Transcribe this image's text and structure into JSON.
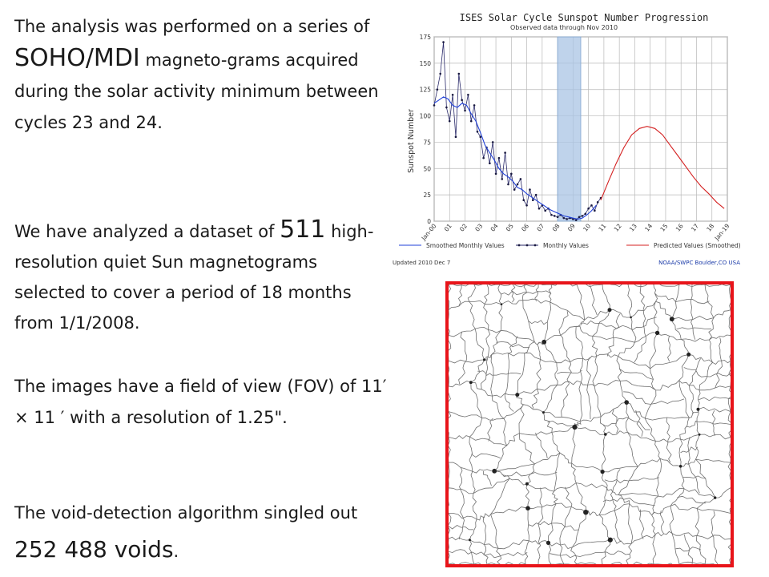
{
  "text": {
    "p1": {
      "a": "The analysis was performed on a series of ",
      "b": "SOHO/MDI",
      "c": " magneto-grams acquired during the solar activity minimum between cycles 23 and 24."
    },
    "p2": {
      "a": "We have analyzed a dataset of ",
      "b": "511",
      "c": " high-resolution quiet Sun magnetograms selected to cover a period of 18 months from 1/1/2008."
    },
    "p3": "The images have a field of view (FOV) of 11′ × 11 ′ with a resolution of 1.25\".",
    "p4": {
      "a": "The void-detection algorithm singled out ",
      "b": "252 488 voids",
      "c": "."
    }
  },
  "chart_data": {
    "type": "line",
    "title": "ISES Solar Cycle Sunspot Number Progression",
    "subtitle": "Observed data through Nov 2010",
    "ylabel": "Sunspot Number",
    "ylim": [
      0,
      175
    ],
    "yticks": [
      0,
      25,
      50,
      75,
      100,
      125,
      150,
      175
    ],
    "xticks": [
      "Jan-00",
      "01",
      "02",
      "03",
      "04",
      "05",
      "06",
      "07",
      "08",
      "09",
      "10",
      "11",
      "12",
      "13",
      "14",
      "15",
      "16",
      "17",
      "18",
      "Jan-19"
    ],
    "xlim": [
      2000,
      2019
    ],
    "highlight": [
      2008,
      2009.5
    ],
    "legend": [
      "Smoothed Monthly Values",
      "Monthly Values",
      "Predicted Values (Smoothed)"
    ],
    "footer_left": "Updated 2010 Dec  7",
    "footer_right": "NOAA/SWPC Boulder,CO USA",
    "series": [
      {
        "name": "Monthly Values",
        "x": [
          2000.0,
          2000.2,
          2000.4,
          2000.6,
          2000.8,
          2001.0,
          2001.2,
          2001.4,
          2001.6,
          2001.8,
          2002.0,
          2002.2,
          2002.4,
          2002.6,
          2002.8,
          2003.0,
          2003.2,
          2003.4,
          2003.6,
          2003.8,
          2004.0,
          2004.2,
          2004.4,
          2004.6,
          2004.8,
          2005.0,
          2005.2,
          2005.4,
          2005.6,
          2005.8,
          2006.0,
          2006.2,
          2006.4,
          2006.6,
          2006.8,
          2007.0,
          2007.2,
          2007.4,
          2007.6,
          2007.8,
          2008.0,
          2008.2,
          2008.4,
          2008.6,
          2008.8,
          2009.0,
          2009.2,
          2009.4,
          2009.6,
          2009.8,
          2010.0,
          2010.2,
          2010.4,
          2010.6,
          2010.8
        ],
        "values": [
          110,
          125,
          140,
          170,
          108,
          95,
          120,
          80,
          140,
          115,
          105,
          120,
          95,
          110,
          85,
          80,
          60,
          70,
          55,
          75,
          45,
          60,
          40,
          65,
          35,
          45,
          30,
          35,
          40,
          20,
          15,
          30,
          20,
          25,
          12,
          15,
          10,
          12,
          6,
          5,
          4,
          6,
          3,
          2,
          3,
          2,
          1,
          4,
          5,
          7,
          12,
          15,
          10,
          18,
          22
        ]
      },
      {
        "name": "Smoothed Monthly Values",
        "x": [
          2000.0,
          2000.3,
          2000.6,
          2000.9,
          2001.2,
          2001.5,
          2001.8,
          2002.1,
          2002.4,
          2002.7,
          2003.0,
          2003.3,
          2003.6,
          2003.9,
          2004.2,
          2004.5,
          2004.8,
          2005.1,
          2005.4,
          2005.7,
          2006.0,
          2006.3,
          2006.6,
          2006.9,
          2007.2,
          2007.5,
          2007.8,
          2008.1,
          2008.4,
          2008.7,
          2009.0,
          2009.3,
          2009.6,
          2009.9,
          2010.2,
          2010.5
        ],
        "values": [
          112,
          115,
          118,
          116,
          110,
          108,
          112,
          110,
          102,
          95,
          84,
          72,
          65,
          58,
          50,
          45,
          42,
          38,
          32,
          30,
          26,
          23,
          20,
          17,
          14,
          11,
          9,
          7,
          5,
          4,
          3,
          2,
          3,
          6,
          10,
          15
        ]
      },
      {
        "name": "Predicted Values (Smoothed)",
        "x": [
          2010.8,
          2011.3,
          2011.8,
          2012.3,
          2012.8,
          2013.3,
          2013.8,
          2014.3,
          2014.8,
          2015.3,
          2015.8,
          2016.3,
          2016.8,
          2017.3,
          2017.8,
          2018.3,
          2018.8
        ],
        "values": [
          20,
          38,
          55,
          70,
          82,
          88,
          90,
          88,
          82,
          72,
          62,
          52,
          42,
          33,
          26,
          18,
          12
        ]
      }
    ]
  }
}
